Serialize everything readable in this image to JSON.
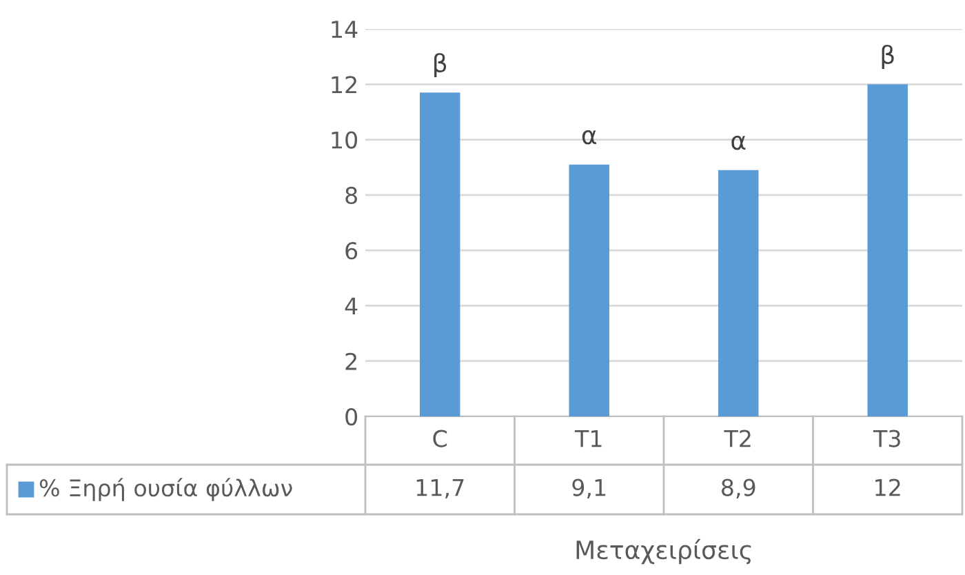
{
  "chart_data": {
    "type": "bar",
    "xlabel": "Μεταχειρίσεις",
    "categories": [
      "C",
      "T1",
      "T2",
      "T3"
    ],
    "series": [
      {
        "name": "% Ξηρή ουσία φύλλων",
        "color": "#5b9bd5",
        "values": [
          11.7,
          9.1,
          8.9,
          12
        ],
        "value_labels": [
          "11,7",
          "9,1",
          "8,9",
          "12"
        ]
      }
    ],
    "ylim": [
      0,
      14
    ],
    "yticks": [
      0,
      2,
      4,
      6,
      8,
      10,
      12,
      14
    ],
    "grid": "y",
    "legend": "bottom",
    "annotations": [
      {
        "text": "β",
        "x": "C",
        "y": 11.7
      },
      {
        "text": "α",
        "x": "T1",
        "y": 9.1
      },
      {
        "text": "α",
        "x": "T2",
        "y": 8.9
      },
      {
        "text": "β",
        "x": "T3",
        "y": 12
      }
    ]
  }
}
